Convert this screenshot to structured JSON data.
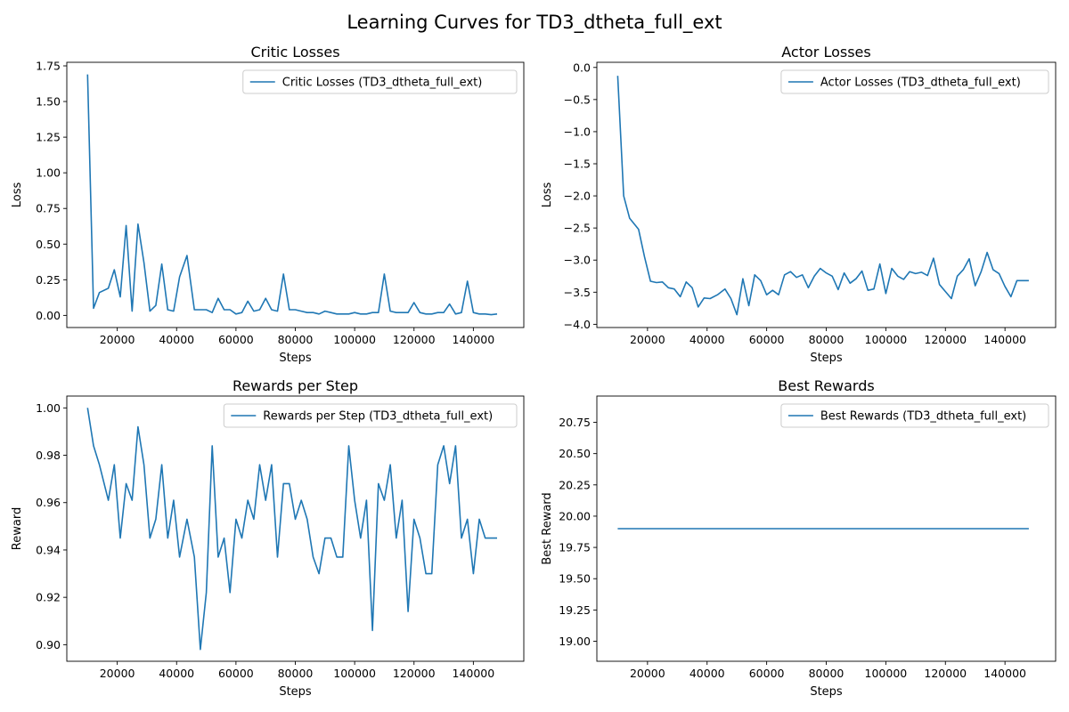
{
  "figure": {
    "title": "Learning Curves for TD3_dtheta_full_ext"
  },
  "colors": {
    "series": "#1f77b4",
    "axes": "#000000",
    "legend_border": "#cccccc",
    "background": "#ffffff"
  },
  "chart_data": [
    {
      "type": "line",
      "title": "Critic Losses",
      "xlabel": "Steps",
      "ylabel": "Loss",
      "xlim": [
        3000,
        157000
      ],
      "ylim": [
        -0.085,
        1.775
      ],
      "xticks": [
        20000,
        40000,
        60000,
        80000,
        100000,
        120000,
        140000
      ],
      "yticks": [
        0.0,
        0.25,
        0.5,
        0.75,
        1.0,
        1.25,
        1.5,
        1.75
      ],
      "ytick_labels": [
        "0.00",
        "0.25",
        "0.50",
        "0.75",
        "1.00",
        "1.25",
        "1.50",
        "1.75"
      ],
      "grid": false,
      "legend_position": "top-right",
      "series": [
        {
          "name": "Critic Losses (TD3_dtheta_full_ext)",
          "x": [
            10000,
            12000,
            14000,
            17000,
            19000,
            21000,
            23000,
            25000,
            27000,
            29000,
            31000,
            33000,
            35000,
            37000,
            39000,
            41000,
            43500,
            46000,
            48000,
            50000,
            52000,
            54000,
            56000,
            58000,
            60000,
            62000,
            64000,
            66000,
            68000,
            70000,
            72000,
            74000,
            76000,
            78000,
            80000,
            82000,
            84000,
            86000,
            88000,
            90000,
            92000,
            94000,
            96000,
            98000,
            100000,
            102000,
            104000,
            106000,
            108000,
            110000,
            112000,
            114000,
            116000,
            118000,
            120000,
            122000,
            124000,
            126000,
            128000,
            130000,
            132000,
            134000,
            136000,
            138000,
            140000,
            142000,
            144000,
            146000,
            148000
          ],
          "y": [
            1.69,
            0.05,
            0.16,
            0.19,
            0.32,
            0.13,
            0.63,
            0.03,
            0.64,
            0.37,
            0.03,
            0.07,
            0.36,
            0.04,
            0.03,
            0.27,
            0.42,
            0.04,
            0.04,
            0.04,
            0.02,
            0.12,
            0.04,
            0.04,
            0.01,
            0.02,
            0.1,
            0.03,
            0.04,
            0.12,
            0.04,
            0.03,
            0.29,
            0.04,
            0.04,
            0.03,
            0.02,
            0.02,
            0.01,
            0.03,
            0.02,
            0.01,
            0.01,
            0.01,
            0.02,
            0.01,
            0.01,
            0.02,
            0.02,
            0.29,
            0.03,
            0.02,
            0.02,
            0.02,
            0.09,
            0.02,
            0.01,
            0.01,
            0.02,
            0.02,
            0.08,
            0.01,
            0.02,
            0.24,
            0.02,
            0.01,
            0.01,
            0.005,
            0.01
          ]
        }
      ]
    },
    {
      "type": "line",
      "title": "Actor Losses",
      "xlabel": "Steps",
      "ylabel": "Loss",
      "xlim": [
        3000,
        157000
      ],
      "ylim": [
        -4.05,
        0.08
      ],
      "xticks": [
        20000,
        40000,
        60000,
        80000,
        100000,
        120000,
        140000
      ],
      "yticks": [
        -4.0,
        -3.5,
        -3.0,
        -2.5,
        -2.0,
        -1.5,
        -1.0,
        -0.5,
        0.0
      ],
      "ytick_labels": [
        "−4.0",
        "−3.5",
        "−3.0",
        "−2.5",
        "−2.0",
        "−1.5",
        "−1.0",
        "−0.5",
        "0.0"
      ],
      "grid": false,
      "legend_position": "top-right",
      "series": [
        {
          "name": "Actor Losses (TD3_dtheta_full_ext)",
          "x": [
            10000,
            12000,
            14000,
            17000,
            19000,
            21000,
            23000,
            25000,
            27000,
            29000,
            31000,
            33000,
            35000,
            37000,
            39000,
            41000,
            43500,
            46000,
            48000,
            50000,
            52000,
            54000,
            56000,
            58000,
            60000,
            62000,
            64000,
            66000,
            68000,
            70000,
            72000,
            74000,
            76000,
            78000,
            80000,
            82000,
            84000,
            86000,
            88000,
            90000,
            92000,
            94000,
            96000,
            98000,
            100000,
            102000,
            104000,
            106000,
            108000,
            110000,
            112000,
            114000,
            116000,
            118000,
            120000,
            122000,
            124000,
            126000,
            128000,
            130000,
            132000,
            134000,
            136000,
            138000,
            140000,
            142000,
            144000,
            146000,
            148000
          ],
          "y": [
            -0.13,
            -2.0,
            -2.35,
            -2.52,
            -2.95,
            -3.33,
            -3.35,
            -3.34,
            -3.43,
            -3.45,
            -3.57,
            -3.34,
            -3.43,
            -3.73,
            -3.59,
            -3.6,
            -3.54,
            -3.45,
            -3.6,
            -3.85,
            -3.29,
            -3.71,
            -3.23,
            -3.32,
            -3.54,
            -3.47,
            -3.54,
            -3.23,
            -3.18,
            -3.27,
            -3.23,
            -3.43,
            -3.25,
            -3.13,
            -3.2,
            -3.25,
            -3.46,
            -3.2,
            -3.36,
            -3.29,
            -3.17,
            -3.47,
            -3.45,
            -3.06,
            -3.52,
            -3.13,
            -3.25,
            -3.3,
            -3.18,
            -3.21,
            -3.19,
            -3.24,
            -2.97,
            -3.38,
            -3.49,
            -3.6,
            -3.25,
            -3.15,
            -2.98,
            -3.4,
            -3.18,
            -2.88,
            -3.15,
            -3.21,
            -3.41,
            -3.57,
            -3.32,
            -3.32,
            -3.32
          ]
        }
      ]
    },
    {
      "type": "line",
      "title": "Rewards per Step",
      "xlabel": "Steps",
      "ylabel": "Reward",
      "xlim": [
        3000,
        157000
      ],
      "ylim": [
        0.893,
        1.005
      ],
      "xticks": [
        20000,
        40000,
        60000,
        80000,
        100000,
        120000,
        140000
      ],
      "yticks": [
        0.9,
        0.92,
        0.94,
        0.96,
        0.98,
        1.0
      ],
      "ytick_labels": [
        "0.90",
        "0.92",
        "0.94",
        "0.96",
        "0.98",
        "1.00"
      ],
      "grid": false,
      "legend_position": "top-right",
      "series": [
        {
          "name": "Rewards per Step (TD3_dtheta_full_ext)",
          "x": [
            10000,
            12000,
            14000,
            17000,
            19000,
            21000,
            23000,
            25000,
            27000,
            29000,
            31000,
            33000,
            35000,
            37000,
            39000,
            41000,
            43500,
            46000,
            48000,
            50000,
            52000,
            54000,
            56000,
            58000,
            60000,
            62000,
            64000,
            66000,
            68000,
            70000,
            72000,
            74000,
            76000,
            78000,
            80000,
            82000,
            84000,
            86000,
            88000,
            90000,
            92000,
            94000,
            96000,
            98000,
            100000,
            102000,
            104000,
            106000,
            108000,
            110000,
            112000,
            114000,
            116000,
            118000,
            120000,
            122000,
            124000,
            126000,
            128000,
            130000,
            132000,
            134000,
            136000,
            138000,
            140000,
            142000,
            144000,
            146000,
            148000
          ],
          "y": [
            1.0,
            0.984,
            0.976,
            0.961,
            0.976,
            0.945,
            0.968,
            0.961,
            0.992,
            0.976,
            0.945,
            0.953,
            0.976,
            0.945,
            0.961,
            0.937,
            0.953,
            0.937,
            0.898,
            0.922,
            0.984,
            0.937,
            0.945,
            0.922,
            0.953,
            0.945,
            0.961,
            0.953,
            0.976,
            0.961,
            0.976,
            0.937,
            0.968,
            0.968,
            0.953,
            0.961,
            0.953,
            0.937,
            0.93,
            0.945,
            0.945,
            0.937,
            0.937,
            0.984,
            0.961,
            0.945,
            0.961,
            0.906,
            0.968,
            0.961,
            0.976,
            0.945,
            0.961,
            0.914,
            0.953,
            0.945,
            0.93,
            0.93,
            0.976,
            0.984,
            0.968,
            0.984,
            0.945,
            0.953,
            0.93,
            0.953,
            0.945,
            0.945,
            0.945
          ]
        }
      ]
    },
    {
      "type": "line",
      "title": "Best Rewards",
      "xlabel": "Steps",
      "ylabel": "Best Reward",
      "xlim": [
        3000,
        157000
      ],
      "ylim": [
        18.84,
        20.96
      ],
      "xticks": [
        20000,
        40000,
        60000,
        80000,
        100000,
        120000,
        140000
      ],
      "yticks": [
        19.0,
        19.25,
        19.5,
        19.75,
        20.0,
        20.25,
        20.5,
        20.75
      ],
      "ytick_labels": [
        "19.00",
        "19.25",
        "19.50",
        "19.75",
        "20.00",
        "20.25",
        "20.50",
        "20.75"
      ],
      "grid": false,
      "legend_position": "top-right",
      "series": [
        {
          "name": "Best Rewards (TD3_dtheta_full_ext)",
          "x": [
            10000,
            148000
          ],
          "y": [
            19.9,
            19.9
          ]
        }
      ]
    }
  ]
}
